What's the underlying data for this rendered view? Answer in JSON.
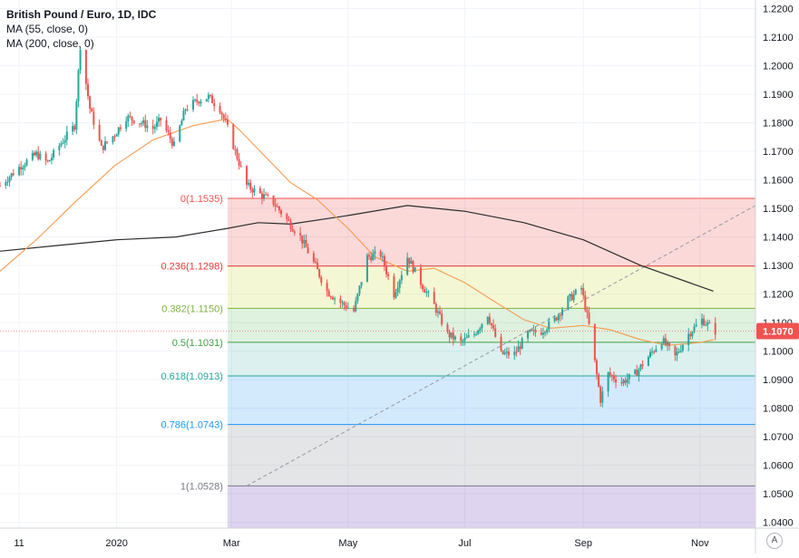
{
  "legend": {
    "title": "British Pound / Euro, 1D, IDC",
    "ma55": "MA (55, close, 0)",
    "ma200": "MA (200, close, 0)"
  },
  "corner_button": "A",
  "colors": {
    "up": "#26a69a",
    "down": "#ef5350",
    "ma55": "#f5a058",
    "ma200": "#2c2c2c",
    "price_badge": "#ef5350",
    "trendline": "#9598a1"
  },
  "chart_data": {
    "type": "candlestick",
    "title": "British Pound / Euro, 1D, IDC",
    "ylim": [
      1.038,
      1.223
    ],
    "y_ticks": [
      "1.2200",
      "1.2100",
      "1.2000",
      "1.1900",
      "1.1800",
      "1.1700",
      "1.1600",
      "1.1500",
      "1.1400",
      "1.1300",
      "1.1200",
      "1.1100",
      "1.1000",
      "1.0900",
      "1.0800",
      "1.0700",
      "1.0600",
      "1.0500",
      "1.0400"
    ],
    "x_ticks": [
      "11",
      "2020",
      "Mar",
      "May",
      "Jul",
      "Sep",
      "Nov"
    ],
    "x_tick_dates": [
      "2019-11-11",
      "2020-01-01",
      "2020-03-01",
      "2020-05-01",
      "2020-07-01",
      "2020-09-01",
      "2020-11-01"
    ],
    "x_range": [
      "2019-11-01",
      "2020-11-30"
    ],
    "last_price": "1.1070",
    "fibonacci": {
      "start_date": "2020-02-28",
      "end_date": "2020-11-30",
      "levels": [
        {
          "label": "0(1.1535)",
          "ratio": 0,
          "price": 1.1535,
          "color": "#ef5350"
        },
        {
          "label": "0.236(1.1298)",
          "ratio": 0.236,
          "price": 1.1298,
          "color": "#e53935"
        },
        {
          "label": "0.382(1.1150)",
          "ratio": 0.382,
          "price": 1.115,
          "color": "#7cb342"
        },
        {
          "label": "0.5(1.1031)",
          "ratio": 0.5,
          "price": 1.1031,
          "color": "#43a047"
        },
        {
          "label": "0.618(1.0913)",
          "ratio": 0.618,
          "price": 1.0913,
          "color": "#26a69a"
        },
        {
          "label": "0.786(1.0743)",
          "ratio": 0.786,
          "price": 1.0743,
          "color": "#2196f3"
        },
        {
          "label": "1(1.0528)",
          "ratio": 1,
          "price": 1.0528,
          "color": "#787b86"
        }
      ],
      "bands": [
        {
          "from": 1.1535,
          "to": 1.1298,
          "color": "rgba(239,83,80,0.22)"
        },
        {
          "from": 1.1298,
          "to": 1.115,
          "color": "rgba(205,220,57,0.22)"
        },
        {
          "from": 1.115,
          "to": 1.1031,
          "color": "rgba(76,175,80,0.18)"
        },
        {
          "from": 1.1031,
          "to": 1.0913,
          "color": "rgba(38,166,154,0.16)"
        },
        {
          "from": 1.0913,
          "to": 1.0743,
          "color": "rgba(33,150,243,0.20)"
        },
        {
          "from": 1.0743,
          "to": 1.0528,
          "color": "rgba(120,123,134,0.20)"
        },
        {
          "from": 1.0528,
          "to": 1.038,
          "color": "rgba(103,58,183,0.22)"
        }
      ]
    },
    "trendline": {
      "from": [
        "2020-03-09",
        1.0528
      ],
      "to": [
        "2020-11-30",
        1.151
      ]
    },
    "anchors": [
      [
        "2019-11-01",
        1.158
      ],
      [
        "2019-11-12",
        1.165
      ],
      [
        "2019-11-20",
        1.169
      ],
      [
        "2019-11-26",
        1.166
      ],
      [
        "2019-12-02",
        1.172
      ],
      [
        "2019-12-10",
        1.179
      ],
      [
        "2019-12-13",
        1.207
      ],
      [
        "2019-12-18",
        1.185
      ],
      [
        "2019-12-24",
        1.171
      ],
      [
        "2019-12-31",
        1.176
      ],
      [
        "2020-01-06",
        1.182
      ],
      [
        "2020-01-14",
        1.18
      ],
      [
        "2020-01-20",
        1.178
      ],
      [
        "2020-01-24",
        1.181
      ],
      [
        "2020-01-31",
        1.172
      ],
      [
        "2020-02-06",
        1.185
      ],
      [
        "2020-02-13",
        1.188
      ],
      [
        "2020-02-18",
        1.189
      ],
      [
        "2020-02-24",
        1.185
      ],
      [
        "2020-02-28",
        1.178
      ],
      [
        "2020-03-04",
        1.168
      ],
      [
        "2020-03-09",
        1.158
      ],
      [
        "2020-03-16",
        1.155
      ],
      [
        "2020-03-23",
        1.152
      ],
      [
        "2020-03-30",
        1.146
      ],
      [
        "2020-04-06",
        1.14
      ],
      [
        "2020-04-13",
        1.131
      ],
      [
        "2020-04-20",
        1.121
      ],
      [
        "2020-04-27",
        1.117
      ],
      [
        "2020-05-04",
        1.114
      ],
      [
        "2020-05-11",
        1.133
      ],
      [
        "2020-05-18",
        1.134
      ],
      [
        "2020-05-25",
        1.12
      ],
      [
        "2020-06-01",
        1.133
      ],
      [
        "2020-06-08",
        1.124
      ],
      [
        "2020-06-15",
        1.116
      ],
      [
        "2020-06-22",
        1.106
      ],
      [
        "2020-06-29",
        1.103
      ],
      [
        "2020-07-06",
        1.106
      ],
      [
        "2020-07-13",
        1.113
      ],
      [
        "2020-07-20",
        1.099
      ],
      [
        "2020-07-27",
        1.099
      ],
      [
        "2020-08-03",
        1.106
      ],
      [
        "2020-08-10",
        1.107
      ],
      [
        "2020-08-17",
        1.111
      ],
      [
        "2020-08-24",
        1.118
      ],
      [
        "2020-08-31",
        1.122
      ],
      [
        "2020-09-04",
        1.109
      ],
      [
        "2020-09-10",
        1.083
      ],
      [
        "2020-09-14",
        1.092
      ],
      [
        "2020-09-21",
        1.089
      ],
      [
        "2020-09-28",
        1.092
      ],
      [
        "2020-10-05",
        1.098
      ],
      [
        "2020-10-12",
        1.104
      ],
      [
        "2020-10-19",
        1.098
      ],
      [
        "2020-10-26",
        1.106
      ],
      [
        "2020-11-02",
        1.111
      ],
      [
        "2020-11-09",
        1.107
      ]
    ],
    "ma55": [
      [
        "2019-11-01",
        1.128
      ],
      [
        "2019-11-20",
        1.139
      ],
      [
        "2019-12-10",
        1.152
      ],
      [
        "2019-12-31",
        1.165
      ],
      [
        "2020-01-20",
        1.174
      ],
      [
        "2020-02-10",
        1.179
      ],
      [
        "2020-02-25",
        1.181
      ],
      [
        "2020-02-28",
        1.1812
      ],
      [
        "2020-03-06",
        1.177
      ],
      [
        "2020-03-16",
        1.17
      ],
      [
        "2020-04-01",
        1.159
      ],
      [
        "2020-04-15",
        1.153
      ],
      [
        "2020-05-01",
        1.143
      ],
      [
        "2020-05-15",
        1.133
      ],
      [
        "2020-06-01",
        1.128
      ],
      [
        "2020-06-15",
        1.129
      ],
      [
        "2020-07-01",
        1.124
      ],
      [
        "2020-07-15",
        1.118
      ],
      [
        "2020-08-01",
        1.111
      ],
      [
        "2020-08-15",
        1.108
      ],
      [
        "2020-09-01",
        1.109
      ],
      [
        "2020-09-15",
        1.1075
      ],
      [
        "2020-10-01",
        1.104
      ],
      [
        "2020-10-15",
        1.102
      ],
      [
        "2020-11-01",
        1.103
      ],
      [
        "2020-11-08",
        1.104
      ]
    ],
    "ma200": [
      [
        "2019-11-01",
        1.135
      ],
      [
        "2019-12-01",
        1.137
      ],
      [
        "2020-01-01",
        1.139
      ],
      [
        "2020-02-01",
        1.14
      ],
      [
        "2020-02-28",
        1.143
      ],
      [
        "2020-03-15",
        1.145
      ],
      [
        "2020-04-01",
        1.1445
      ],
      [
        "2020-05-01",
        1.1475
      ],
      [
        "2020-06-01",
        1.151
      ],
      [
        "2020-07-01",
        1.149
      ],
      [
        "2020-08-01",
        1.145
      ],
      [
        "2020-09-01",
        1.139
      ],
      [
        "2020-10-01",
        1.13
      ],
      [
        "2020-11-08",
        1.121
      ]
    ]
  }
}
